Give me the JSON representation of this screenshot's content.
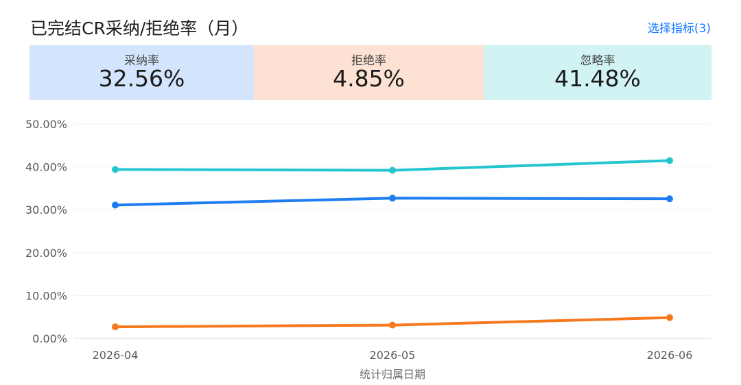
{
  "header": {
    "title": "已完结CR采纳/拒绝率（月）",
    "select_label": "选择指标(3)"
  },
  "kpis": [
    {
      "label": "采纳率",
      "value": "32.56%",
      "bg": "#d3e5fc"
    },
    {
      "label": "拒绝率",
      "value": "4.85%",
      "bg": "#fde2d3"
    },
    {
      "label": "忽略率",
      "value": "41.48%",
      "bg": "#d1f3f3"
    }
  ],
  "chart_data": {
    "type": "line",
    "categories": [
      "2026-04",
      "2026-05",
      "2026-06"
    ],
    "xlabel": "统计归属日期",
    "ylabel": "",
    "ylim": [
      0,
      50
    ],
    "yticks": [
      "0.00%",
      "10.00%",
      "20.00%",
      "30.00%",
      "40.00%",
      "50.00%"
    ],
    "grid": true,
    "series": [
      {
        "name": "采纳率",
        "color": "#1e7df0",
        "values": [
          31.1,
          32.7,
          32.56
        ]
      },
      {
        "name": "拒绝率",
        "color": "#f6781f",
        "values": [
          2.7,
          3.1,
          4.85
        ]
      },
      {
        "name": "忽略率",
        "color": "#25c5d0",
        "values": [
          39.4,
          39.2,
          41.48
        ]
      }
    ]
  }
}
